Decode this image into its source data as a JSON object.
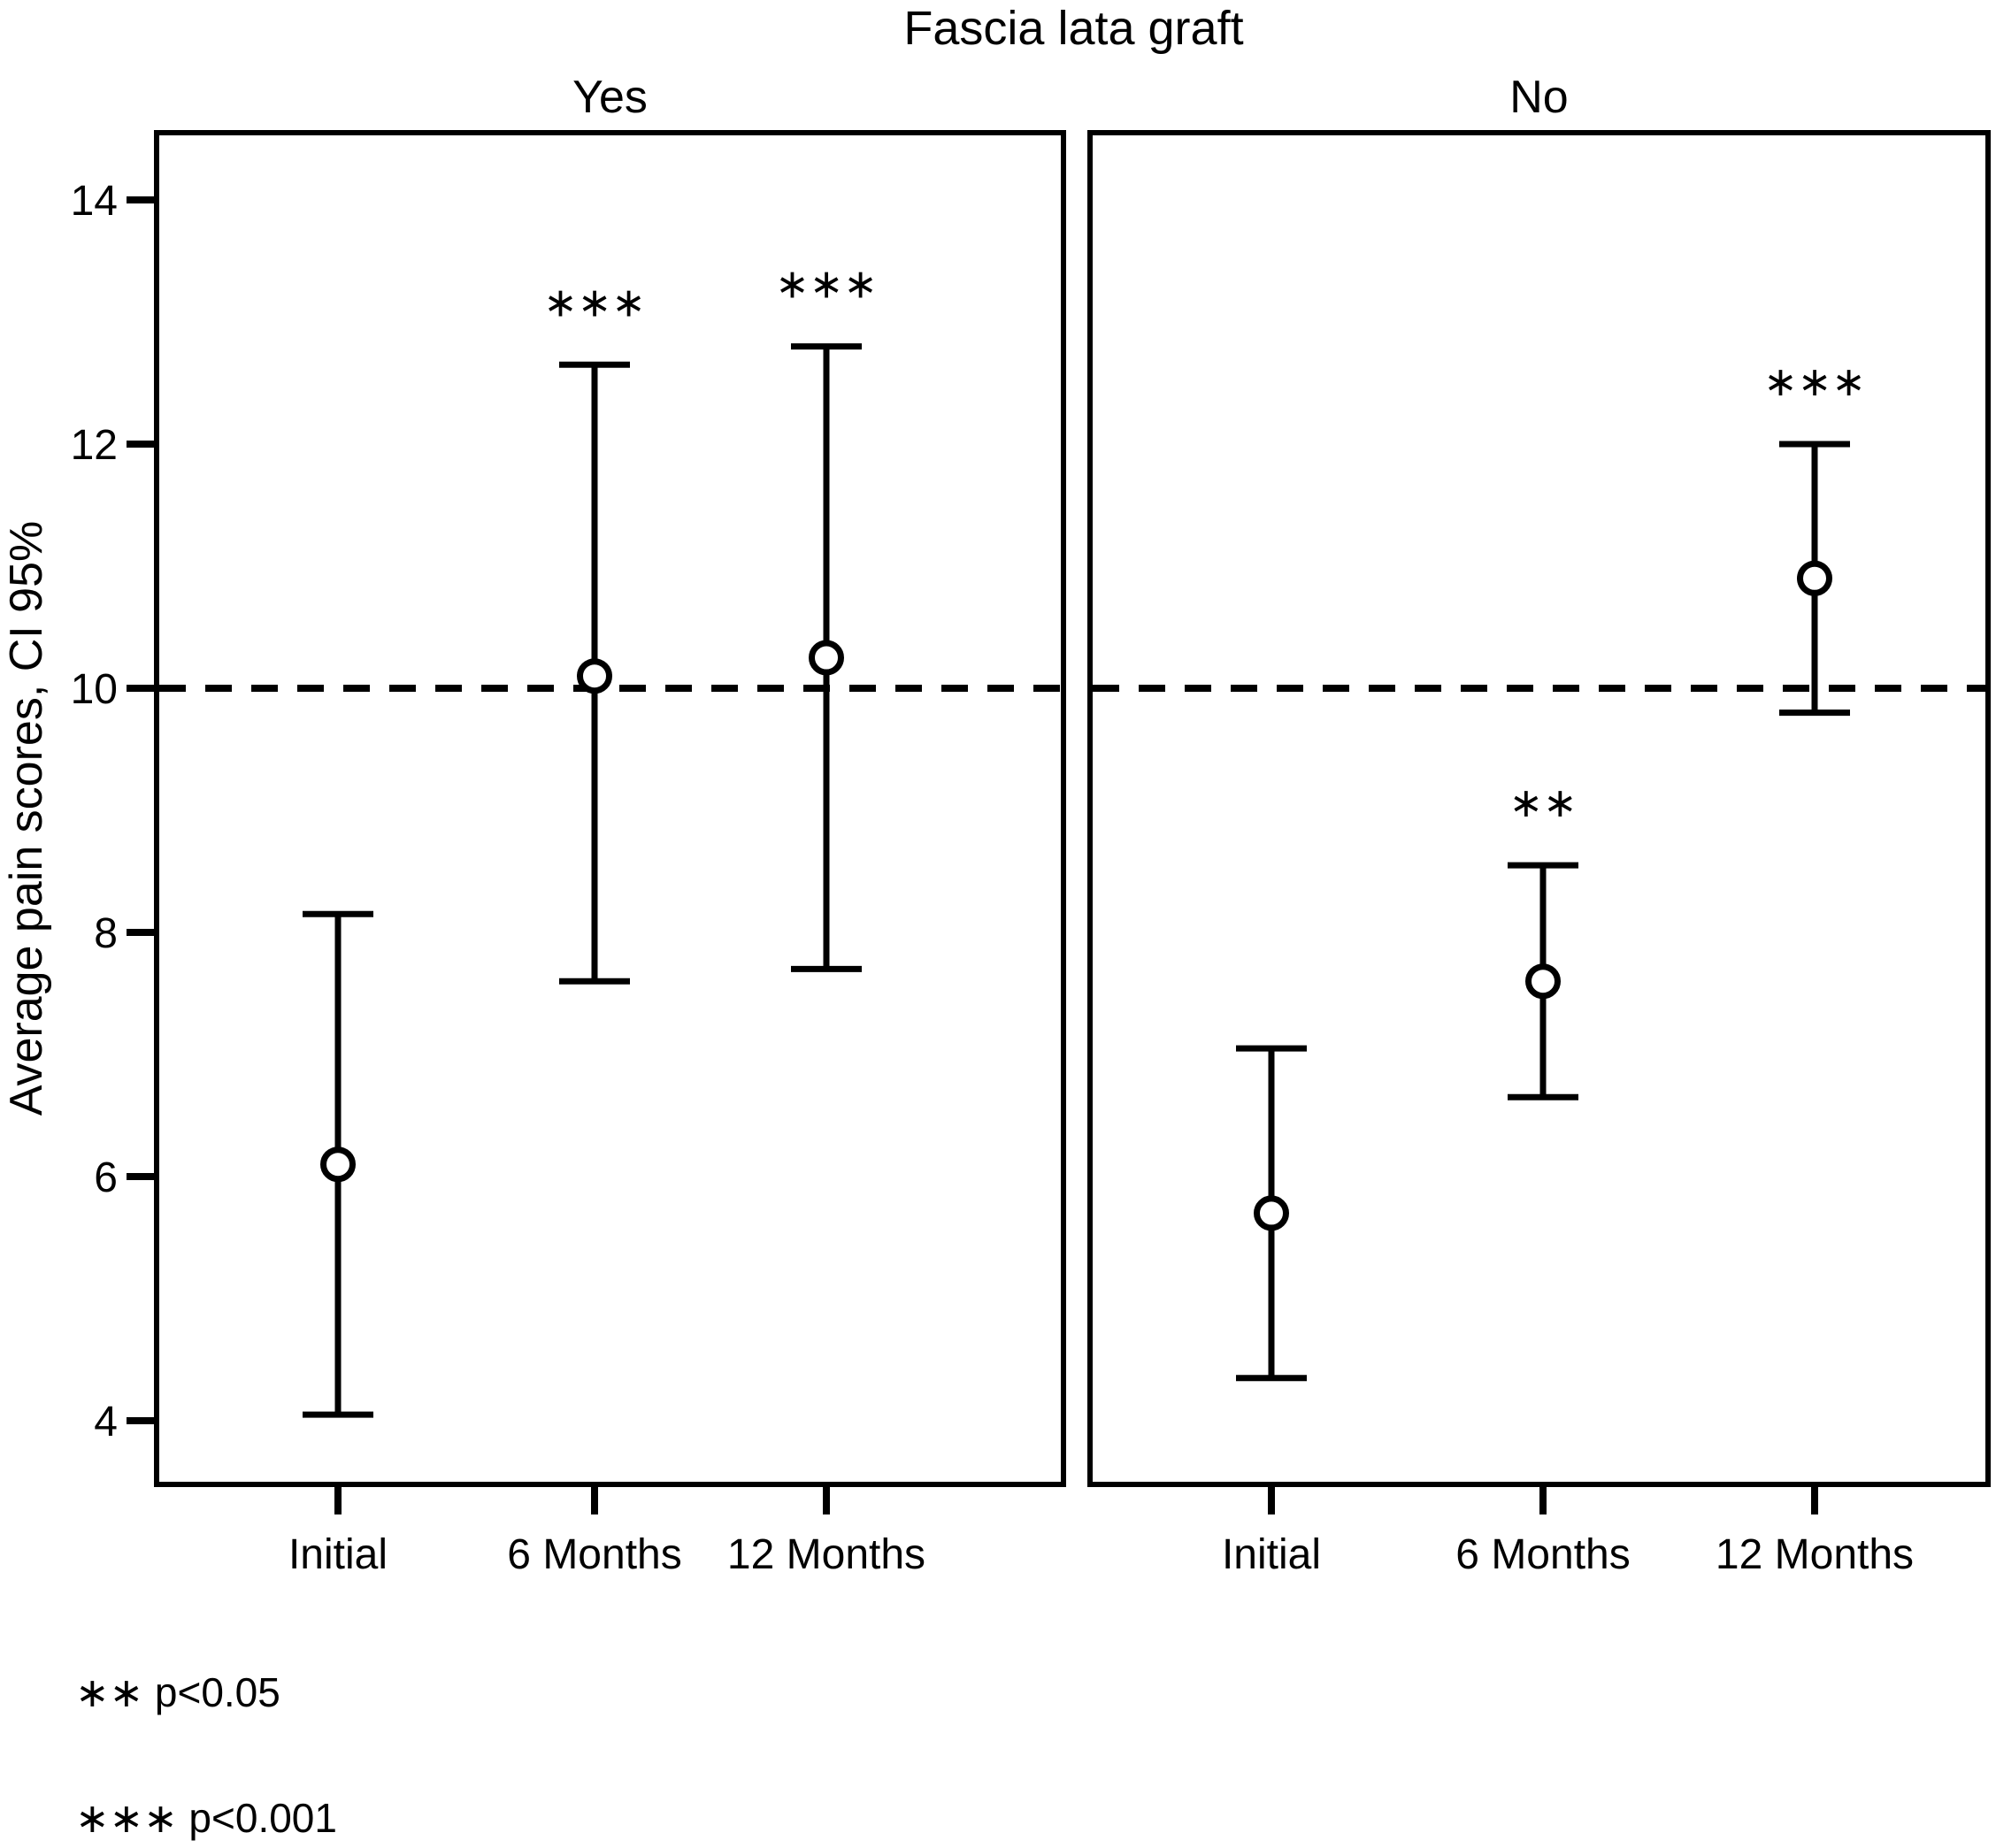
{
  "title": "Fascia lata graft",
  "ylabel": "Average pain scores, CI 95%",
  "footnotes": [
    "∗∗ p<0.05",
    "∗∗∗ p<0.001"
  ],
  "chart_data": {
    "type": "errorbar",
    "title": "Fascia lata graft",
    "ylabel": "Average pain scores, CI 95%",
    "xlabel": "",
    "y_ticks": [
      14,
      12,
      10,
      8,
      6,
      4
    ],
    "ylim": [
      3.45,
      14.55
    ],
    "grid": false,
    "reference_line": 10,
    "reference_line_style": "dashed",
    "categories": [
      "Initial",
      "6 Months",
      "12 Months"
    ],
    "marker": "open-circle",
    "panels": [
      {
        "label": "Yes",
        "points": [
          {
            "category": "Initial",
            "mean": 6.1,
            "ci_low": 4.05,
            "ci_high": 8.15,
            "significance": ""
          },
          {
            "category": "6 Months",
            "mean": 10.1,
            "ci_low": 7.6,
            "ci_high": 12.65,
            "significance": "∗∗∗"
          },
          {
            "category": "12 Months",
            "mean": 10.25,
            "ci_low": 7.7,
            "ci_high": 12.8,
            "significance": "∗∗∗"
          }
        ]
      },
      {
        "label": "No",
        "points": [
          {
            "category": "Initial",
            "mean": 5.7,
            "ci_low": 4.35,
            "ci_high": 7.05,
            "significance": ""
          },
          {
            "category": "6 Months",
            "mean": 7.6,
            "ci_low": 6.65,
            "ci_high": 8.55,
            "significance": "∗∗"
          },
          {
            "category": "12 Months",
            "mean": 10.9,
            "ci_low": 9.8,
            "ci_high": 12.0,
            "significance": "∗∗∗"
          }
        ]
      }
    ],
    "legend": null,
    "significance_legend": [
      {
        "marker": "∗∗",
        "meaning": "p<0.05"
      },
      {
        "marker": "∗∗∗",
        "meaning": "p<0.001"
      }
    ]
  }
}
